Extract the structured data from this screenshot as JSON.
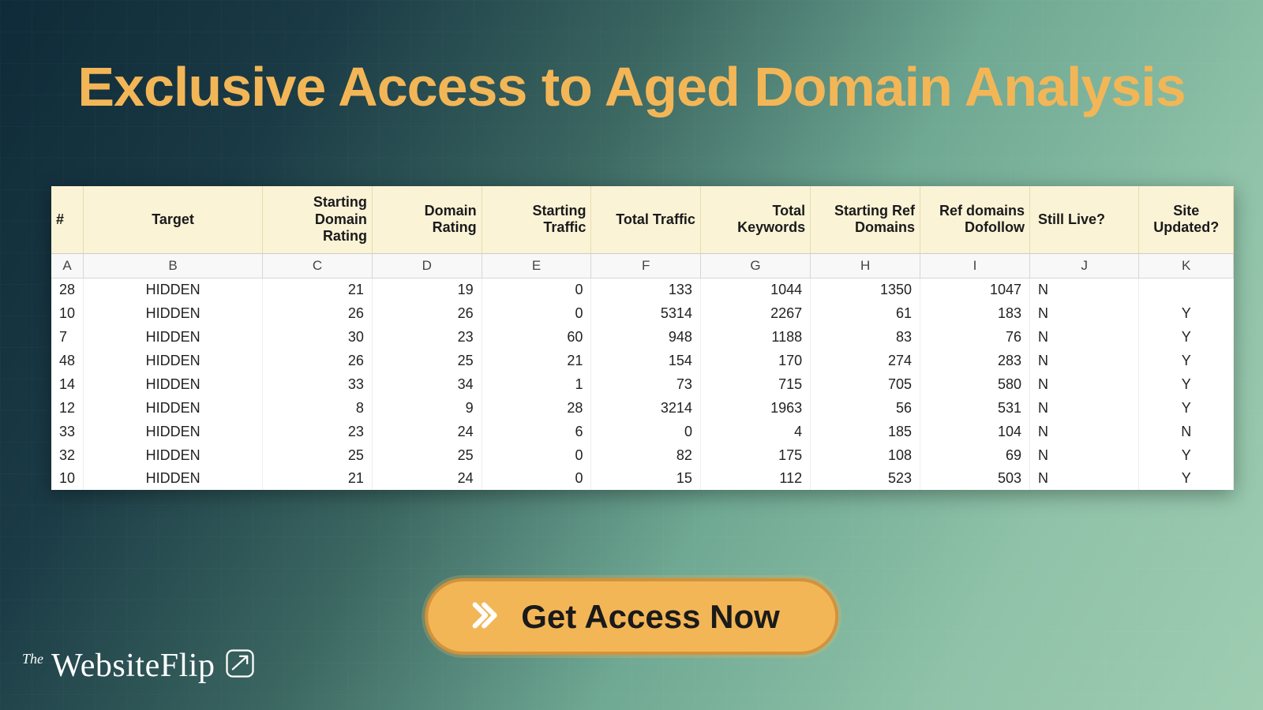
{
  "colors": {
    "accent": "#f3b657",
    "accent_border": "#d4923a",
    "header_bg": "#fbf3d6",
    "text_dark": "#1a1a1a"
  },
  "headline": "Exclusive Access to Aged Domain Analysis",
  "cta": {
    "label": "Get Access Now"
  },
  "logo": {
    "the": "The",
    "brand": "WebsiteFlip"
  },
  "sheet": {
    "column_letters": [
      "A",
      "B",
      "C",
      "D",
      "E",
      "F",
      "G",
      "H",
      "I",
      "J",
      "K"
    ],
    "headers": [
      "#",
      "Target",
      "Starting Domain Rating",
      "Domain Rating",
      "Starting Traffic",
      "Total Traffic",
      "Total Keywords",
      "Starting Ref Domains",
      "Ref domains Dofollow",
      "Still Live?",
      "Site Updated?"
    ],
    "rows": [
      {
        "id": "28",
        "target": "HIDDEN",
        "sdr": "21",
        "dr": "19",
        "st": "0",
        "tt": "133",
        "tk": "1044",
        "srd": "1350",
        "rdd": "1047",
        "live": "N",
        "upd": ""
      },
      {
        "id": "10",
        "target": "HIDDEN",
        "sdr": "26",
        "dr": "26",
        "st": "0",
        "tt": "5314",
        "tk": "2267",
        "srd": "61",
        "rdd": "183",
        "live": "N",
        "upd": "Y"
      },
      {
        "id": "7",
        "target": "HIDDEN",
        "sdr": "30",
        "dr": "23",
        "st": "60",
        "tt": "948",
        "tk": "1188",
        "srd": "83",
        "rdd": "76",
        "live": "N",
        "upd": "Y"
      },
      {
        "id": "48",
        "target": "HIDDEN",
        "sdr": "26",
        "dr": "25",
        "st": "21",
        "tt": "154",
        "tk": "170",
        "srd": "274",
        "rdd": "283",
        "live": "N",
        "upd": "Y"
      },
      {
        "id": "14",
        "target": "HIDDEN",
        "sdr": "33",
        "dr": "34",
        "st": "1",
        "tt": "73",
        "tk": "715",
        "srd": "705",
        "rdd": "580",
        "live": "N",
        "upd": "Y"
      },
      {
        "id": "12",
        "target": "HIDDEN",
        "sdr": "8",
        "dr": "9",
        "st": "28",
        "tt": "3214",
        "tk": "1963",
        "srd": "56",
        "rdd": "531",
        "live": "N",
        "upd": "Y"
      },
      {
        "id": "33",
        "target": "HIDDEN",
        "sdr": "23",
        "dr": "24",
        "st": "6",
        "tt": "0",
        "tk": "4",
        "srd": "185",
        "rdd": "104",
        "live": "N",
        "upd": "N"
      },
      {
        "id": "32",
        "target": "HIDDEN",
        "sdr": "25",
        "dr": "25",
        "st": "0",
        "tt": "82",
        "tk": "175",
        "srd": "108",
        "rdd": "69",
        "live": "N",
        "upd": "Y"
      },
      {
        "id": "10",
        "target": "HIDDEN",
        "sdr": "21",
        "dr": "24",
        "st": "0",
        "tt": "15",
        "tk": "112",
        "srd": "523",
        "rdd": "503",
        "live": "N",
        "upd": "Y"
      }
    ]
  }
}
